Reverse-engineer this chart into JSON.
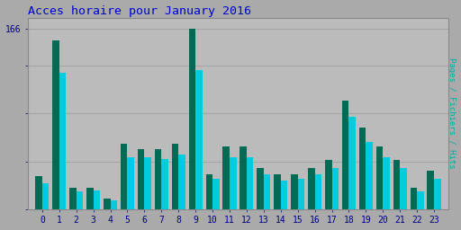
{
  "title": "Acces horaire pour January 2016",
  "ylabel": "Pages / Fichiers / Hits",
  "hours": [
    0,
    1,
    2,
    3,
    4,
    5,
    6,
    7,
    8,
    9,
    10,
    11,
    12,
    13,
    14,
    15,
    16,
    17,
    18,
    19,
    20,
    21,
    22,
    23
  ],
  "pages": [
    30,
    155,
    20,
    20,
    10,
    60,
    55,
    55,
    60,
    166,
    32,
    58,
    58,
    38,
    32,
    32,
    38,
    45,
    100,
    75,
    58,
    45,
    20,
    35
  ],
  "hits": [
    24,
    125,
    16,
    17,
    8,
    48,
    48,
    46,
    50,
    128,
    28,
    48,
    48,
    32,
    26,
    28,
    32,
    38,
    85,
    62,
    48,
    38,
    16,
    28
  ],
  "bar_color_dark": "#006B54",
  "bar_color_light": "#00CCDD",
  "bg_color": "#AAAAAA",
  "plot_bg_color": "#BBBBBB",
  "title_color": "#0000CC",
  "ylabel_color": "#00AAAA",
  "tick_color": "#000080",
  "ylim": [
    0,
    176
  ],
  "ytick_vals": [
    0,
    44,
    88,
    132,
    166
  ],
  "ytick_label": "166",
  "title_fontsize": 9.5,
  "ylabel_fontsize": 6.5,
  "tick_fontsize": 7,
  "bar_width": 0.4
}
